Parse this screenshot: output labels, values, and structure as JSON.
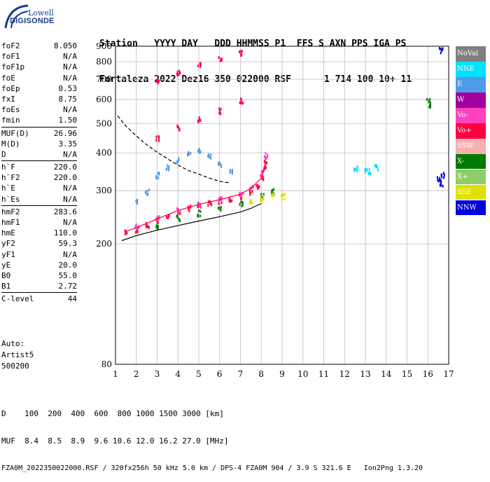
{
  "logo": {
    "brand_top": "Lowell",
    "brand_bottom": "DIGISONDE"
  },
  "header": {
    "labels": [
      "Station",
      "YYYY",
      "DAY",
      "DDD",
      "HHMMSS",
      "P1",
      "FFS",
      "S",
      "AXN",
      "PPS",
      "IGA",
      "PS"
    ],
    "values": [
      "Fortaleza",
      "2022",
      "Dez16",
      "350",
      "022000",
      "RSF",
      "",
      "1",
      "714",
      "100",
      "10+",
      "11"
    ]
  },
  "params": {
    "group1": [
      {
        "label": "foF2",
        "value": "8.050"
      },
      {
        "label": "foF1",
        "value": "N/A"
      },
      {
        "label": "foF1p",
        "value": "N/A"
      },
      {
        "label": "foE",
        "value": "N/A"
      },
      {
        "label": "foEp",
        "value": "0.53"
      },
      {
        "label": "fxI",
        "value": "8.75"
      },
      {
        "label": "foEs",
        "value": "N/A"
      },
      {
        "label": "fmin",
        "value": "1.50"
      }
    ],
    "group2": [
      {
        "label": "MUF(D)",
        "value": "26.96"
      },
      {
        "label": "M(D)",
        "value": "3.35"
      },
      {
        "label": "D",
        "value": "N/A"
      }
    ],
    "group3": [
      {
        "label": "h`F",
        "value": "220.0"
      },
      {
        "label": "h`F2",
        "value": "220.0"
      },
      {
        "label": "h`E",
        "value": "N/A"
      },
      {
        "label": "h`Es",
        "value": "N/A"
      }
    ],
    "group4": [
      {
        "label": "hmF2",
        "value": "283.6"
      },
      {
        "label": "hmF1",
        "value": "N/A"
      },
      {
        "label": "hmE",
        "value": "110.0"
      },
      {
        "label": "yF2",
        "value": "59.3"
      },
      {
        "label": "yF1",
        "value": "N/A"
      },
      {
        "label": "yE",
        "value": "20.0"
      },
      {
        "label": "B0",
        "value": "55.0"
      },
      {
        "label": "B1",
        "value": "2.72"
      }
    ],
    "group5": [
      {
        "label": "C-level",
        "value": "44"
      }
    ]
  },
  "autoscale": {
    "line1": "Auto:",
    "line2": "Artist5",
    "line3": "500200"
  },
  "legend": [
    {
      "label": "NoVal",
      "color": "#7f7f7f"
    },
    {
      "label": "NNE",
      "color": "#00e1ff"
    },
    {
      "label": "E",
      "color": "#4f9be6"
    },
    {
      "label": "W",
      "color": "#a000a0"
    },
    {
      "label": "Vo-",
      "color": "#ff40c0"
    },
    {
      "label": "Vo+",
      "color": "#ff0040"
    },
    {
      "label": "SSW",
      "color": "#f6b0b0"
    },
    {
      "label": "X-",
      "color": "#007a00"
    },
    {
      "label": "X+",
      "color": "#8fcc6a"
    },
    {
      "label": "SSE",
      "color": "#e0e000"
    },
    {
      "label": "NNW",
      "color": "#0000e0"
    }
  ],
  "chart_data": {
    "type": "scatter",
    "xlim": [
      1,
      17
    ],
    "ylim": [
      80,
      900
    ],
    "xticks": [
      1,
      2,
      3,
      4,
      5,
      6,
      7,
      8,
      9,
      10,
      11,
      12,
      13,
      14,
      15,
      16,
      17
    ],
    "yticks": [
      80,
      200,
      300,
      400,
      500,
      600,
      700,
      800,
      900
    ],
    "grid": true,
    "y_scale": "log",
    "legend_position": "right",
    "series": [
      {
        "color_key": "Vo+",
        "points": [
          [
            1.5,
            220
          ],
          [
            2.0,
            225
          ],
          [
            2.5,
            232
          ],
          [
            3.0,
            240
          ],
          [
            3.5,
            250
          ],
          [
            4.0,
            258
          ],
          [
            4.5,
            265
          ],
          [
            5.0,
            270
          ],
          [
            5.5,
            275
          ],
          [
            6.0,
            280
          ],
          [
            6.5,
            285
          ],
          [
            7.0,
            290
          ],
          [
            7.5,
            300
          ],
          [
            7.8,
            310
          ],
          [
            8.0,
            330
          ],
          [
            8.1,
            360
          ],
          [
            8.2,
            380
          ]
        ]
      },
      {
        "color_key": "Vo-",
        "points": [
          [
            2.0,
            230
          ],
          [
            3.0,
            248
          ],
          [
            4.0,
            262
          ],
          [
            5.0,
            272
          ],
          [
            6.0,
            282
          ],
          [
            7.0,
            295
          ],
          [
            7.5,
            310
          ],
          [
            8.0,
            345
          ],
          [
            8.2,
            395
          ]
        ]
      },
      {
        "color_key": "E",
        "points": [
          [
            2.0,
            280
          ],
          [
            2.5,
            300
          ],
          [
            3.0,
            340
          ],
          [
            3.5,
            360
          ],
          [
            4.0,
            380
          ],
          [
            4.5,
            400
          ],
          [
            5.0,
            410
          ],
          [
            5.5,
            395
          ],
          [
            6.0,
            370
          ],
          [
            6.5,
            350
          ]
        ]
      },
      {
        "color_key": "X-",
        "points": [
          [
            3.0,
            230
          ],
          [
            4.0,
            245
          ],
          [
            5.0,
            255
          ],
          [
            6.0,
            265
          ],
          [
            7.0,
            275
          ],
          [
            8.0,
            290
          ],
          [
            8.5,
            300
          ],
          [
            16.0,
            600
          ],
          [
            16.1,
            580
          ]
        ]
      },
      {
        "color_key": "SSE",
        "points": [
          [
            7.5,
            280
          ],
          [
            8.0,
            285
          ],
          [
            8.5,
            290
          ],
          [
            9.0,
            290
          ]
        ]
      },
      {
        "color_key": "Vo+",
        "points": [
          [
            3.0,
            450
          ],
          [
            4.0,
            490
          ],
          [
            5.0,
            520
          ],
          [
            6.0,
            555
          ],
          [
            7.0,
            600
          ]
        ]
      },
      {
        "color_key": "Vo+",
        "points": [
          [
            3.0,
            690
          ],
          [
            4.0,
            740
          ],
          [
            5.0,
            790
          ],
          [
            6.0,
            825
          ],
          [
            7.0,
            860
          ]
        ]
      },
      {
        "color_key": "NNE",
        "points": [
          [
            12.5,
            360
          ],
          [
            13.0,
            355
          ],
          [
            13.2,
            350
          ],
          [
            13.5,
            360
          ]
        ]
      },
      {
        "color_key": "NNW",
        "points": [
          [
            16.5,
            330
          ],
          [
            16.6,
            320
          ],
          [
            16.7,
            340
          ],
          [
            16.6,
            880
          ]
        ]
      }
    ],
    "curves": [
      {
        "name": "",
        "color": "#000000",
        "style": "solid",
        "points": [
          [
            1.3,
            205
          ],
          [
            2.0,
            213
          ],
          [
            3.0,
            222
          ],
          [
            4.0,
            230
          ],
          [
            5.0,
            238
          ],
          [
            6.0,
            246
          ],
          [
            7.0,
            255
          ],
          [
            7.5,
            262
          ],
          [
            8.0,
            272
          ]
        ]
      },
      {
        "name": "",
        "color": "#000000",
        "style": "dashed",
        "points": [
          [
            1.1,
            530
          ],
          [
            1.5,
            490
          ],
          [
            2.0,
            455
          ],
          [
            2.5,
            425
          ],
          [
            3.0,
            402
          ],
          [
            3.5,
            382
          ],
          [
            4.0,
            364
          ],
          [
            4.5,
            350
          ],
          [
            5.0,
            340
          ],
          [
            5.5,
            330
          ],
          [
            6.0,
            322
          ],
          [
            6.5,
            318
          ]
        ]
      },
      {
        "name": "",
        "color": "#ff0040",
        "style": "solid",
        "points": [
          [
            1.5,
            220
          ],
          [
            2.0,
            226
          ],
          [
            3.0,
            242
          ],
          [
            4.0,
            258
          ],
          [
            5.0,
            270
          ],
          [
            6.0,
            280
          ],
          [
            7.0,
            292
          ],
          [
            7.5,
            305
          ],
          [
            8.0,
            330
          ],
          [
            8.2,
            370
          ]
        ]
      }
    ]
  },
  "footer": {
    "row1_label": "D",
    "row1_values": "100  200  400  600  800 1000 1500 3000 [km]",
    "row2_label": "MUF",
    "row2_values": "8.4  8.5  8.9  9.6 10.6 12.0 16.2 27.0 [MHz]",
    "row3": "FZA0M_2022350022000.RSF / 320fx256h 50 kHz 5.0 km / DPS-4 FZA0M 904 / 3.9 S 321.6 E   Ion2Png 1.3.20"
  }
}
